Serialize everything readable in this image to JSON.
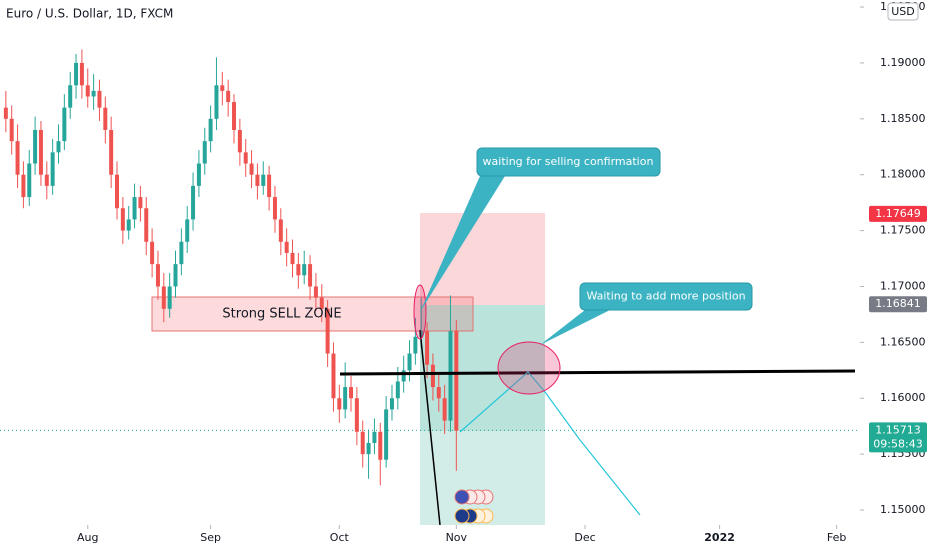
{
  "chart_data": {
    "type": "candlestick",
    "title": "Euro / U.S. Dollar, 1D, FXCM",
    "currency": "USD",
    "up_color": "#26a69a",
    "down_color": "#ef5350",
    "xlim": [
      -1,
      146
    ],
    "xticks": [
      {
        "value": 14,
        "label": "Aug"
      },
      {
        "value": 35,
        "label": "Sep"
      },
      {
        "value": 57,
        "label": "Oct"
      },
      {
        "value": 77,
        "label": "Nov"
      },
      {
        "value": 99,
        "label": "Dec"
      },
      {
        "value": 122,
        "label": "2022"
      },
      {
        "value": 142,
        "label": "Feb"
      }
    ],
    "ylim": [
      1.14866,
      1.19563
    ],
    "yticks": [
      {
        "value": 1.15,
        "label": "1.15000"
      },
      {
        "value": 1.155,
        "label": "1.15500"
      },
      {
        "value": 1.16,
        "label": "1.16000"
      },
      {
        "value": 1.165,
        "label": "1.16500"
      },
      {
        "value": 1.17,
        "label": "1.17000"
      },
      {
        "value": 1.175,
        "label": "1.17500"
      },
      {
        "value": 1.18,
        "label": "1.18000"
      },
      {
        "value": 1.185,
        "label": "1.18500"
      },
      {
        "value": 1.19,
        "label": "1.19000"
      },
      {
        "value": 1.195,
        "label": "1.19500"
      }
    ],
    "price_labels": [
      {
        "value": 1.17649,
        "color": "#f23645"
      },
      {
        "value": 1.16841,
        "color": "#787b86"
      },
      {
        "value": 1.15713,
        "color": "#22ab94"
      }
    ],
    "countdown": "09:58:43",
    "annotations": [
      "waiting for selling confirmation",
      "Waiting to add more position",
      "Strong SELL ZONE"
    ],
    "candles": [
      [
        1.186,
        1.1875,
        1.1838,
        1.185
      ],
      [
        1.185,
        1.1862,
        1.1818,
        1.183
      ],
      [
        1.183,
        1.1845,
        1.1788,
        1.18
      ],
      [
        1.18,
        1.1812,
        1.177,
        1.178
      ],
      [
        1.178,
        1.1822,
        1.1772,
        1.181
      ],
      [
        1.181,
        1.1852,
        1.18,
        1.184
      ],
      [
        1.184,
        1.1848,
        1.179,
        1.18
      ],
      [
        1.18,
        1.1812,
        1.1778,
        1.179
      ],
      [
        1.179,
        1.1832,
        1.1782,
        1.182
      ],
      [
        1.182,
        1.1845,
        1.181,
        1.183
      ],
      [
        1.183,
        1.1872,
        1.1822,
        1.186
      ],
      [
        1.186,
        1.1892,
        1.185,
        1.188
      ],
      [
        1.188,
        1.1908,
        1.1868,
        1.19
      ],
      [
        1.19,
        1.1912,
        1.1868,
        1.188
      ],
      [
        1.188,
        1.1895,
        1.186,
        1.187
      ],
      [
        1.187,
        1.189,
        1.1858,
        1.1875
      ],
      [
        1.1875,
        1.1885,
        1.1848,
        1.186
      ],
      [
        1.186,
        1.187,
        1.1828,
        1.184
      ],
      [
        1.184,
        1.1852,
        1.1788,
        1.18
      ],
      [
        1.18,
        1.1812,
        1.176,
        1.177
      ],
      [
        1.177,
        1.178,
        1.1738,
        1.175
      ],
      [
        1.175,
        1.1772,
        1.1742,
        1.176
      ],
      [
        1.176,
        1.1792,
        1.1752,
        1.178
      ],
      [
        1.178,
        1.179,
        1.1758,
        1.177
      ],
      [
        1.177,
        1.178,
        1.1728,
        1.174
      ],
      [
        1.174,
        1.1752,
        1.1708,
        1.172
      ],
      [
        1.172,
        1.1732,
        1.1688,
        1.17
      ],
      [
        1.17,
        1.1712,
        1.1668,
        1.168
      ],
      [
        1.168,
        1.1712,
        1.1672,
        1.17
      ],
      [
        1.17,
        1.1732,
        1.169,
        1.172
      ],
      [
        1.172,
        1.1752,
        1.171,
        1.174
      ],
      [
        1.174,
        1.1772,
        1.173,
        1.176
      ],
      [
        1.176,
        1.1802,
        1.175,
        1.179
      ],
      [
        1.179,
        1.1822,
        1.178,
        1.181
      ],
      [
        1.181,
        1.1842,
        1.18,
        1.183
      ],
      [
        1.183,
        1.1862,
        1.182,
        1.185
      ],
      [
        1.185,
        1.1905,
        1.184,
        1.188
      ],
      [
        1.188,
        1.1892,
        1.1862,
        1.1875
      ],
      [
        1.1875,
        1.1885,
        1.1852,
        1.1865
      ],
      [
        1.1865,
        1.1872,
        1.1828,
        1.184
      ],
      [
        1.184,
        1.185,
        1.1808,
        1.182
      ],
      [
        1.182,
        1.1832,
        1.1798,
        1.181
      ],
      [
        1.181,
        1.1822,
        1.1788,
        1.18
      ],
      [
        1.18,
        1.181,
        1.1778,
        1.179
      ],
      [
        1.179,
        1.1812,
        1.1782,
        1.18
      ],
      [
        1.18,
        1.1808,
        1.1768,
        1.178
      ],
      [
        1.178,
        1.179,
        1.1748,
        1.176
      ],
      [
        1.176,
        1.177,
        1.1728,
        1.174
      ],
      [
        1.174,
        1.1752,
        1.1718,
        1.173
      ],
      [
        1.173,
        1.1742,
        1.1708,
        1.172
      ],
      [
        1.172,
        1.173,
        1.1698,
        1.171
      ],
      [
        1.171,
        1.1732,
        1.1702,
        1.172
      ],
      [
        1.172,
        1.1728,
        1.1688,
        1.17
      ],
      [
        1.17,
        1.1712,
        1.1678,
        1.169
      ],
      [
        1.169,
        1.1702,
        1.1668,
        1.168
      ],
      [
        1.168,
        1.1688,
        1.1628,
        1.164
      ],
      [
        1.164,
        1.165,
        1.1588,
        1.16
      ],
      [
        1.16,
        1.1612,
        1.1578,
        1.159
      ],
      [
        1.159,
        1.1632,
        1.1582,
        1.161
      ],
      [
        1.161,
        1.162,
        1.1588,
        1.16
      ],
      [
        1.16,
        1.161,
        1.1558,
        1.157
      ],
      [
        1.157,
        1.158,
        1.1538,
        1.155
      ],
      [
        1.155,
        1.1572,
        1.1528,
        1.156
      ],
      [
        1.156,
        1.1582,
        1.155,
        1.157
      ],
      [
        1.157,
        1.1578,
        1.1522,
        1.1545
      ],
      [
        1.1545,
        1.1602,
        1.1538,
        1.159
      ],
      [
        1.159,
        1.1612,
        1.158,
        1.16
      ],
      [
        1.16,
        1.1628,
        1.159,
        1.1615
      ],
      [
        1.1615,
        1.1638,
        1.1605,
        1.1625
      ],
      [
        1.1625,
        1.1652,
        1.1615,
        1.164
      ],
      [
        1.164,
        1.1672,
        1.163,
        1.1655
      ],
      [
        1.1655,
        1.169,
        1.1645,
        1.166
      ],
      [
        1.166,
        1.1668,
        1.1618,
        1.163
      ],
      [
        1.163,
        1.164,
        1.1598,
        1.161
      ],
      [
        1.161,
        1.1622,
        1.1588,
        1.16
      ],
      [
        1.16,
        1.1612,
        1.1568,
        1.158
      ],
      [
        1.158,
        1.1692,
        1.157,
        1.166
      ],
      [
        1.166,
        1.167,
        1.1535,
        1.1571
      ]
    ]
  }
}
